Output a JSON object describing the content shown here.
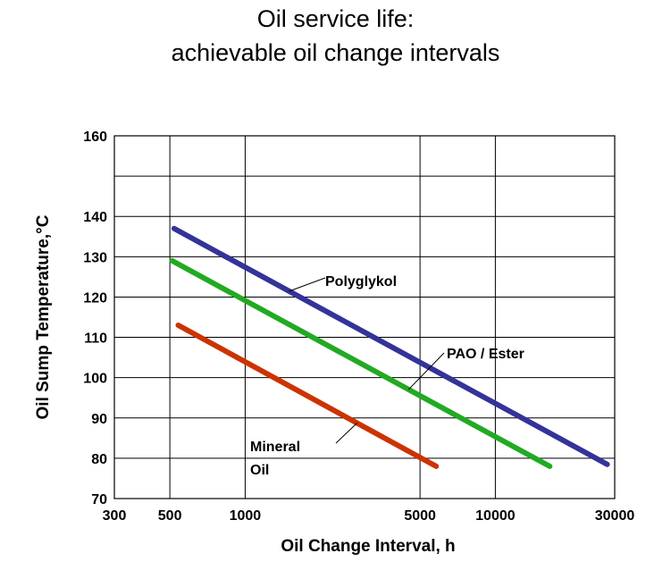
{
  "chart_data": {
    "type": "line",
    "title_line1": "Oil service life:",
    "title_line2": "achievable oil change intervals",
    "xlabel": "Oil Change Interval, h",
    "ylabel": "Oil Sump Temperature,°C",
    "xscale": "log",
    "xlim": [
      300,
      30000
    ],
    "ylim": [
      70,
      160
    ],
    "xticks": [
      300,
      500,
      1000,
      5000,
      10000,
      30000
    ],
    "xtick_labels": [
      "300",
      "500",
      "1000",
      "5000",
      "10000",
      "30000"
    ],
    "yticks": [
      70,
      80,
      90,
      100,
      110,
      120,
      130,
      140,
      160
    ],
    "ytick_labels": [
      "70",
      "80",
      "90",
      "100",
      "110",
      "120",
      "130",
      "140",
      "160"
    ],
    "x_gridlines": [
      500,
      1000,
      5000,
      10000
    ],
    "y_gridlines": [
      80,
      90,
      100,
      110,
      120,
      130,
      140,
      150
    ],
    "grid": true,
    "series": [
      {
        "name": "Polyglykol",
        "color": "#333399",
        "x": [
          520,
          28000
        ],
        "y": [
          137,
          78.5
        ]
      },
      {
        "name": "PAO / Ester",
        "color": "#22aa22",
        "x": [
          510,
          16500
        ],
        "y": [
          129,
          78
        ]
      },
      {
        "name": "Mineral Oil",
        "color": "#cc3300",
        "x": [
          540,
          5800
        ],
        "y": [
          113,
          78
        ]
      }
    ],
    "annotations": [
      {
        "lines": [
          "Polyglykol"
        ],
        "series": 0,
        "point_at_x": 1500
      },
      {
        "lines": [
          "PAO / Ester"
        ],
        "series": 1,
        "point_at_x": 4500
      },
      {
        "lines": [
          "Mineral",
          "Oil"
        ],
        "series": 2,
        "point_at_x": 2800
      }
    ]
  }
}
